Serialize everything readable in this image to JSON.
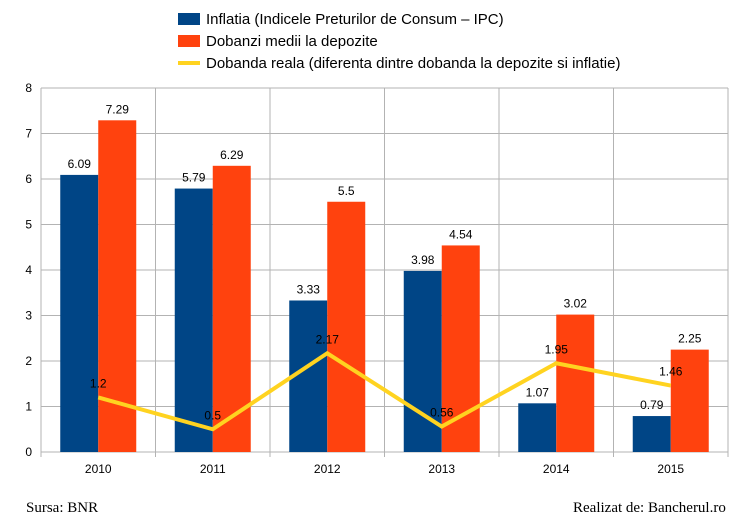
{
  "chart_data": {
    "type": "bar",
    "categories": [
      "2010",
      "2011",
      "2012",
      "2013",
      "2014",
      "2015"
    ],
    "series": [
      {
        "name": "Inflatia (Indicele Preturilor de Consum – IPC)",
        "type": "bar",
        "color": "#004586",
        "values": [
          6.09,
          5.79,
          3.33,
          3.98,
          1.07,
          0.79
        ],
        "labels": [
          "6.09",
          "5.79",
          "3.33",
          "3.98",
          "1.07",
          "0.79"
        ]
      },
      {
        "name": "Dobanzi medii la depozite",
        "type": "bar",
        "color": "#ff420e",
        "values": [
          7.29,
          6.29,
          5.5,
          4.54,
          3.02,
          2.25
        ],
        "labels": [
          "7.29",
          "6.29",
          "5.5",
          "4.54",
          "3.02",
          "2.25"
        ]
      },
      {
        "name": "Dobanda reala (diferenta dintre dobanda la depozite si inflatie)",
        "type": "line",
        "color": "#ffd320",
        "values": [
          1.2,
          0.5,
          2.17,
          0.56,
          1.95,
          1.46
        ],
        "labels": [
          "1.2",
          "0.5",
          "2.17",
          "0.56",
          "1.95",
          "1.46"
        ]
      }
    ],
    "ylim": [
      0,
      8
    ],
    "yticks": [
      "0",
      "1",
      "2",
      "3",
      "4",
      "5",
      "6",
      "7",
      "8"
    ],
    "grid": true,
    "legend_position": "top"
  },
  "footer": {
    "source": "Sursa: BNR",
    "credit": "Realizat de: Bancherul.ro"
  }
}
